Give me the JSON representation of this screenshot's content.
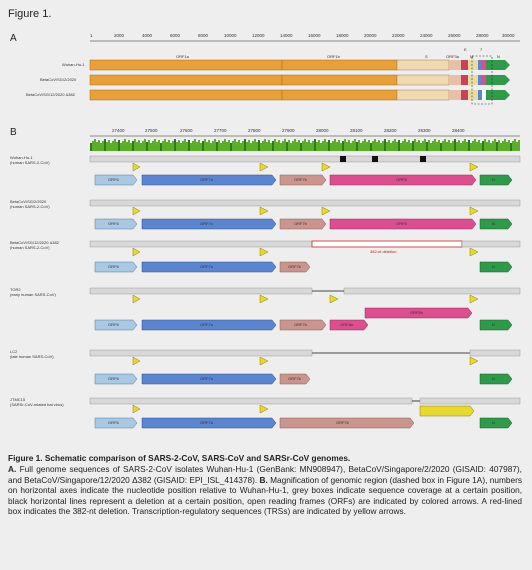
{
  "figure_label": "Figure 1.",
  "panel_a": {
    "letter": "A",
    "axis_ticks": [
      "1",
      "2000",
      "4000",
      "6000",
      "8000",
      "10000",
      "12000",
      "14000",
      "16000",
      "18000",
      "20000",
      "22000",
      "24000",
      "26000",
      "28000",
      "30000"
    ],
    "genome_labels": [
      "Wuhan-Hu-1",
      "BetaCoV/SG/2/2020",
      "BetaCoV/SG/12/2020 Δ382"
    ],
    "orf_labels": [
      "ORF1a",
      "ORF1b",
      "S",
      "ORF3a",
      "E",
      "M",
      "7",
      "N"
    ],
    "colors": {
      "orf1a": "#e8a03a",
      "orf1b": "#e8a03a",
      "s": "#f0d8b0",
      "orf3a": "#e8bfa8",
      "m": "#e9dca0",
      "n": "#2e9a4a"
    }
  },
  "panel_b": {
    "letter": "B",
    "axis_ticks": [
      "27400",
      "27500",
      "27600",
      "27700",
      "27800",
      "27900",
      "28000",
      "28100",
      "28200",
      "28300",
      "28400"
    ],
    "genomes": [
      {
        "name": "Wuhan-Hu-1",
        "sub": "(human SARS-2-CoV)"
      },
      {
        "name": "BetaCoV/SG/2/2020",
        "sub": "(human SARS-2-CoV)"
      },
      {
        "name": "BetaCoV/SG/12/2020 Δ382",
        "sub": "(human SARS-2-CoV)"
      },
      {
        "name": "TOR2",
        "sub": "(early human SARS-CoV)"
      },
      {
        "name": "LC2",
        "sub": "(late human SARS-CoV)"
      },
      {
        "name": "JTMC15",
        "sub": "(SARSr-CoV-related bat virus)"
      }
    ],
    "orf_labels": {
      "orf6": "ORF6",
      "orf7a": "ORF7a",
      "orf7b": "ORF7b",
      "orf8": "ORF8",
      "orf8a": "ORF8a",
      "orf8b": "ORF8b",
      "n": "N"
    },
    "deletion_label": "382-nt deletion",
    "colors": {
      "orf6": "#a9c8e4",
      "orf7a": "#5b86cf",
      "orf7b": "#c9958e",
      "orf8": "#dc4f8e",
      "n": "#2e9a4a",
      "trs": "#e8d832",
      "deletion": "#d23a3a",
      "gray": "#cfcfcf"
    }
  },
  "caption": {
    "title": "Figure 1. Schematic comparison of SARS-2-CoV, SARS-CoV and SARSr-CoV genomes.",
    "a_letter": "A.",
    "a_text": " Full genome sequences of SARS-2-CoV isolates Wuhan-Hu-1 (GenBank: MN908947), BetaCoV/Singapore/2/2020 (GISAID: 407987), and BetaCoV/Singapore/12/2020 Δ382 (GISAID: EPI_ISL_414378). ",
    "b_letter": "B.",
    "b_text": " Magnification of genomic region (dashed box in Figure 1A), numbers on horizontal axes indicate the nucleotide position relative to Wuhan-Hu-1, grey boxes indicate sequence coverage at a certain position, black horizontal lines represent a deletion at a certain position, open reading frames (ORFs) are indicated by colored arrows. A red-lined box indicates the 382-nt deletion. Transcription-regulatory sequences (TRSs) are indicated by yellow arrows."
  }
}
